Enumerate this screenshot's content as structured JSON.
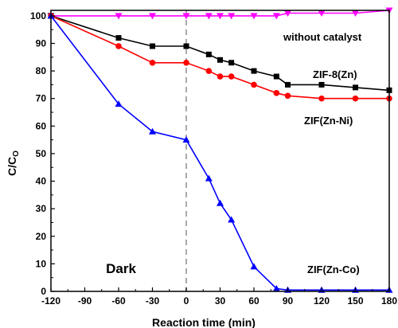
{
  "chart_data": {
    "type": "line",
    "xlabel": "Reaction time (min)",
    "ylabel_main": "C/C",
    "ylabel_sub": "O",
    "xlim": [
      -120,
      180
    ],
    "ylim": [
      0,
      102
    ],
    "xticks": [
      -120,
      -90,
      -60,
      -30,
      0,
      30,
      60,
      90,
      120,
      150,
      180
    ],
    "yticks": [
      0,
      10,
      20,
      30,
      40,
      50,
      60,
      70,
      80,
      90,
      100
    ],
    "vline_x": 0,
    "dark_label": "Dark",
    "series": [
      {
        "name": "without catalyst",
        "color": "#ff00ff",
        "marker": "triangle-down",
        "x": [
          -120,
          -60,
          -30,
          0,
          20,
          30,
          40,
          60,
          80,
          90,
          120,
          150,
          180
        ],
        "y": [
          100,
          100,
          100,
          100,
          100,
          100,
          100,
          100,
          100,
          101,
          101,
          101,
          102
        ]
      },
      {
        "name": "ZIF-8(Zn)",
        "color": "#000000",
        "marker": "square",
        "x": [
          -120,
          -60,
          -30,
          0,
          20,
          30,
          40,
          60,
          80,
          90,
          120,
          150,
          180
        ],
        "y": [
          100,
          92,
          89,
          89,
          86,
          84,
          83,
          80,
          78,
          75,
          75,
          74,
          73
        ]
      },
      {
        "name": "ZIF(Zn-Ni)",
        "color": "#ff0000",
        "marker": "circle",
        "x": [
          -120,
          -60,
          -30,
          0,
          20,
          30,
          40,
          60,
          80,
          90,
          120,
          150,
          180
        ],
        "y": [
          100,
          89,
          83,
          83,
          80,
          78,
          78,
          75,
          72,
          71,
          70,
          70,
          70
        ]
      },
      {
        "name": "ZIF(Zn-Co)",
        "color": "#0000ff",
        "marker": "triangle-up",
        "x": [
          -120,
          -60,
          -30,
          0,
          20,
          30,
          40,
          60,
          80,
          90,
          120,
          150,
          180
        ],
        "y": [
          100,
          68,
          58,
          55,
          41,
          32,
          26,
          9,
          1,
          0.5,
          0.5,
          0.5,
          0.5
        ]
      }
    ]
  }
}
